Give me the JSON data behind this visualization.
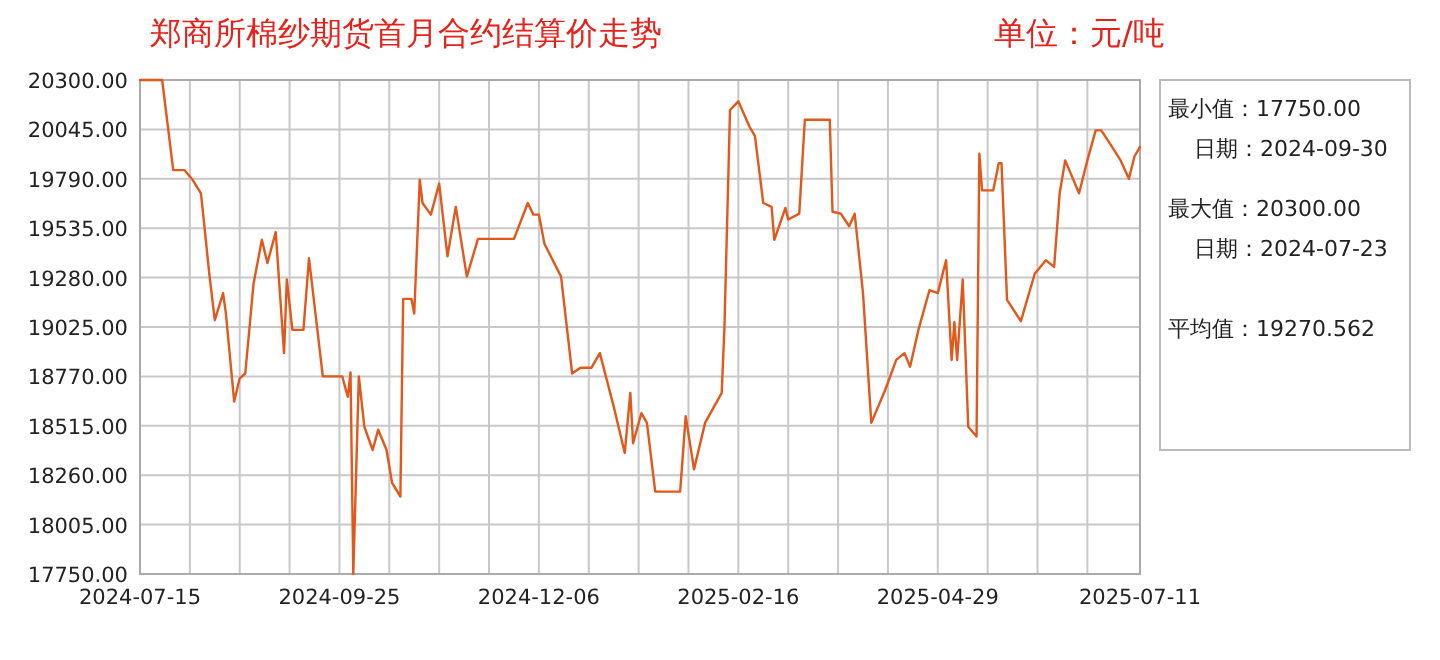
{
  "chart_data": {
    "type": "line",
    "title": "郑商所棉纱期货首月合约结算价走势",
    "subtitle": "单位：元/吨",
    "annotations": [
      "最小值：17750.00",
      "日期：2024-09-30",
      "最大值：20300.00",
      "日期：2024-07-23",
      "平均值：19270.562"
    ],
    "grid": true,
    "line_style": "solid",
    "marker": "none",
    "xlim": [
      "2024-07-15",
      "2025-07-11"
    ],
    "xticks": [
      {
        "value": "2024-07-15",
        "label": "2024-07-15"
      },
      {
        "value": "2024-08-02",
        "label": null
      },
      {
        "value": "2024-08-20",
        "label": null
      },
      {
        "value": "2024-09-07",
        "label": null
      },
      {
        "value": "2024-09-25",
        "label": "2024-09-25"
      },
      {
        "value": "2024-10-13",
        "label": null
      },
      {
        "value": "2024-10-31",
        "label": null
      },
      {
        "value": "2024-11-18",
        "label": null
      },
      {
        "value": "2024-12-06",
        "label": "2024-12-06"
      },
      {
        "value": "2024-12-24",
        "label": null
      },
      {
        "value": "2025-01-11",
        "label": null
      },
      {
        "value": "2025-01-29",
        "label": null
      },
      {
        "value": "2025-02-16",
        "label": "2025-02-16"
      },
      {
        "value": "2025-03-06",
        "label": null
      },
      {
        "value": "2025-03-24",
        "label": null
      },
      {
        "value": "2025-04-11",
        "label": null
      },
      {
        "value": "2025-04-29",
        "label": "2025-04-29"
      },
      {
        "value": "2025-05-17",
        "label": null
      },
      {
        "value": "2025-06-04",
        "label": null
      },
      {
        "value": "2025-06-22",
        "label": null
      },
      {
        "value": "2025-07-11",
        "label": "2025-07-11"
      }
    ],
    "ylim": [
      17750,
      20300
    ],
    "yticks": [
      {
        "value": 17750,
        "label": "17750.00"
      },
      {
        "value": 18005,
        "label": "18005.00"
      },
      {
        "value": 18260,
        "label": "18260.00"
      },
      {
        "value": 18515,
        "label": "18515.00"
      },
      {
        "value": 18770,
        "label": "18770.00"
      },
      {
        "value": 19025,
        "label": "19025.00"
      },
      {
        "value": 19280,
        "label": "19280.00"
      },
      {
        "value": 19535,
        "label": "19535.00"
      },
      {
        "value": 19790,
        "label": "19790.00"
      },
      {
        "value": 20045,
        "label": "20045.00"
      },
      {
        "value": 20300,
        "label": "20300.00"
      }
    ],
    "x": [
      "2024-07-15",
      "2024-07-23",
      "2024-07-27",
      "2024-07-31",
      "2024-08-03",
      "2024-08-06",
      "2024-08-07",
      "2024-08-09",
      "2024-08-11",
      "2024-08-14",
      "2024-08-15",
      "2024-08-18",
      "2024-08-20",
      "2024-08-22",
      "2024-08-25",
      "2024-08-28",
      "2024-08-30",
      "2024-09-02",
      "2024-09-05",
      "2024-09-06",
      "2024-09-08",
      "2024-09-12",
      "2024-09-14",
      "2024-09-19",
      "2024-09-26",
      "2024-09-28",
      "2024-09-29",
      "2024-09-30",
      "2024-10-02",
      "2024-10-04",
      "2024-10-07",
      "2024-10-09",
      "2024-10-12",
      "2024-10-14",
      "2024-10-17",
      "2024-10-18",
      "2024-10-21",
      "2024-10-22",
      "2024-10-24",
      "2024-10-25",
      "2024-10-28",
      "2024-10-31",
      "2024-11-03",
      "2024-11-06",
      "2024-11-10",
      "2024-11-14",
      "2024-11-27",
      "2024-12-02",
      "2024-12-04",
      "2024-12-06",
      "2024-12-08",
      "2024-12-14",
      "2024-12-18",
      "2024-12-21",
      "2024-12-25",
      "2024-12-28",
      "2025-01-02",
      "2025-01-06",
      "2025-01-08",
      "2025-01-09",
      "2025-01-12",
      "2025-01-14",
      "2025-01-17",
      "2025-01-26",
      "2025-01-28",
      "2025-01-31",
      "2025-02-04",
      "2025-02-10",
      "2025-02-11",
      "2025-02-13",
      "2025-02-16",
      "2025-02-20",
      "2025-02-22",
      "2025-02-25",
      "2025-02-28",
      "2025-03-01",
      "2025-03-05",
      "2025-03-06",
      "2025-03-10",
      "2025-03-12",
      "2025-03-21",
      "2025-03-22",
      "2025-03-25",
      "2025-03-28",
      "2025-03-30",
      "2025-04-02",
      "2025-04-05",
      "2025-04-10",
      "2025-04-14",
      "2025-04-17",
      "2025-04-19",
      "2025-04-22",
      "2025-04-26",
      "2025-04-29",
      "2025-05-02",
      "2025-05-04",
      "2025-05-05",
      "2025-05-06",
      "2025-05-08",
      "2025-05-10",
      "2025-05-13",
      "2025-05-14",
      "2025-05-15",
      "2025-05-19",
      "2025-05-21",
      "2025-05-22",
      "2025-05-24",
      "2025-05-29",
      "2025-06-03",
      "2025-06-07",
      "2025-06-10",
      "2025-06-12",
      "2025-06-14",
      "2025-06-19",
      "2025-06-22",
      "2025-06-25",
      "2025-06-27",
      "2025-06-30",
      "2025-07-04",
      "2025-07-07",
      "2025-07-09",
      "2025-07-11"
    ],
    "series": [
      {
        "color": "#e2581b",
        "values": [
          20300,
          20300,
          19835,
          19835,
          19785,
          19715,
          19580,
          19300,
          19060,
          19200,
          19095,
          18640,
          18760,
          18785,
          19250,
          19475,
          19355,
          19515,
          18890,
          19270,
          19010,
          19010,
          19380,
          18770,
          18770,
          18665,
          18790,
          17750,
          18770,
          18510,
          18390,
          18495,
          18390,
          18220,
          18150,
          19170,
          19170,
          19095,
          19785,
          19665,
          19605,
          19765,
          19390,
          19645,
          19285,
          19480,
          19480,
          19665,
          19605,
          19605,
          19455,
          19285,
          18785,
          18815,
          18815,
          18890,
          18615,
          18375,
          18685,
          18425,
          18580,
          18530,
          18175,
          18175,
          18565,
          18290,
          18530,
          18685,
          19030,
          20145,
          20190,
          20060,
          20010,
          19665,
          19645,
          19475,
          19640,
          19580,
          19610,
          20095,
          20095,
          19620,
          19610,
          19545,
          19610,
          19200,
          18530,
          18700,
          18855,
          18890,
          18820,
          19010,
          19215,
          19200,
          19370,
          18855,
          19050,
          18855,
          19270,
          18510,
          18460,
          19920,
          19730,
          19730,
          19870,
          19870,
          19165,
          19055,
          19300,
          19370,
          19335,
          19715,
          19885,
          19715,
          19885,
          20040,
          20040,
          19975,
          19885,
          19790,
          19905,
          19955
        ]
      }
    ]
  }
}
